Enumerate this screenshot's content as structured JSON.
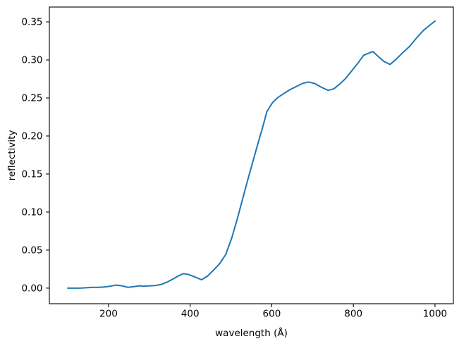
{
  "figure": {
    "background": "#ffffff",
    "axis_color": "#000000"
  },
  "chart_data": {
    "type": "line",
    "title": "",
    "xlabel": "wavelength (Å)",
    "ylabel": "reflectivity",
    "xlim": [
      55,
      1045
    ],
    "ylim": [
      -0.0205,
      0.3695
    ],
    "grid": false,
    "legend_position": "none",
    "xticks": [
      200,
      400,
      600,
      800,
      1000
    ],
    "xtick_labels": [
      "200",
      "400",
      "600",
      "800",
      "1000"
    ],
    "yticks": [
      0.0,
      0.05,
      0.1,
      0.15,
      0.2,
      0.25,
      0.3,
      0.35
    ],
    "ytick_labels": [
      "0.00",
      "0.05",
      "0.10",
      "0.15",
      "0.20",
      "0.25",
      "0.30",
      "0.35"
    ],
    "series": [
      {
        "name": "reflectivity",
        "color": "#1f77b4",
        "points": [
          [
            100,
            0.0
          ],
          [
            115,
            0.0
          ],
          [
            130,
            0.0
          ],
          [
            145,
            0.0005
          ],
          [
            160,
            0.001
          ],
          [
            175,
            0.001
          ],
          [
            190,
            0.0015
          ],
          [
            205,
            0.0025
          ],
          [
            218,
            0.004
          ],
          [
            233,
            0.003
          ],
          [
            248,
            0.001
          ],
          [
            262,
            0.002
          ],
          [
            275,
            0.003
          ],
          [
            288,
            0.0025
          ],
          [
            302,
            0.003
          ],
          [
            316,
            0.0035
          ],
          [
            330,
            0.005
          ],
          [
            344,
            0.008
          ],
          [
            358,
            0.012
          ],
          [
            371,
            0.016
          ],
          [
            383,
            0.019
          ],
          [
            396,
            0.018
          ],
          [
            410,
            0.015
          ],
          [
            428,
            0.011
          ],
          [
            443,
            0.016
          ],
          [
            458,
            0.024
          ],
          [
            472,
            0.032
          ],
          [
            487,
            0.044
          ],
          [
            502,
            0.066
          ],
          [
            515,
            0.09
          ],
          [
            528,
            0.116
          ],
          [
            540,
            0.14
          ],
          [
            552,
            0.163
          ],
          [
            565,
            0.188
          ],
          [
            578,
            0.212
          ],
          [
            588,
            0.232
          ],
          [
            602,
            0.244
          ],
          [
            616,
            0.251
          ],
          [
            630,
            0.256
          ],
          [
            645,
            0.261
          ],
          [
            660,
            0.265
          ],
          [
            675,
            0.269
          ],
          [
            690,
            0.271
          ],
          [
            705,
            0.269
          ],
          [
            722,
            0.264
          ],
          [
            738,
            0.26
          ],
          [
            752,
            0.262
          ],
          [
            766,
            0.268
          ],
          [
            780,
            0.275
          ],
          [
            795,
            0.285
          ],
          [
            810,
            0.295
          ],
          [
            825,
            0.306
          ],
          [
            838,
            0.309
          ],
          [
            848,
            0.311
          ],
          [
            862,
            0.304
          ],
          [
            875,
            0.298
          ],
          [
            890,
            0.294
          ],
          [
            905,
            0.301
          ],
          [
            920,
            0.309
          ],
          [
            938,
            0.318
          ],
          [
            955,
            0.329
          ],
          [
            972,
            0.339
          ],
          [
            988,
            0.346
          ],
          [
            1000,
            0.351
          ]
        ]
      }
    ]
  }
}
